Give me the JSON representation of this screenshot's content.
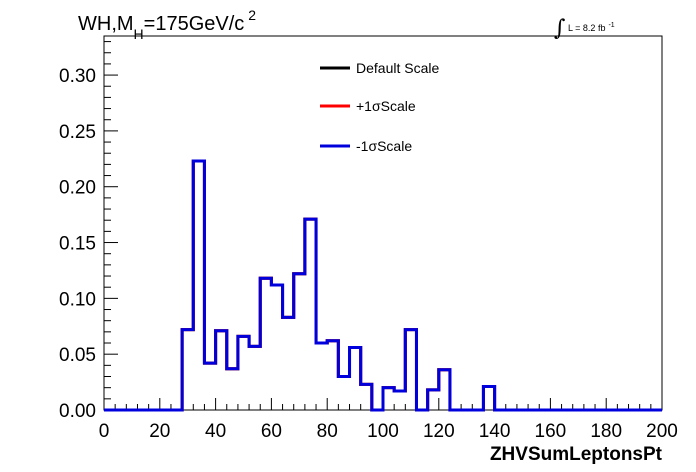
{
  "chart_data": {
    "type": "line",
    "title": {
      "main": "WH,M",
      "sub": "H",
      "rest": "=175GeV/c",
      "sup": "2"
    },
    "lumi": {
      "symbol": "∫",
      "text": "L = 8.2 fb",
      "sup": "-1"
    },
    "xlabel": "ZHVSumLeptonsPt",
    "ylabel": "",
    "xlim": [
      0,
      200
    ],
    "ylim": [
      0,
      0.335
    ],
    "x_ticks": [
      "0",
      "20",
      "40",
      "60",
      "80",
      "100",
      "120",
      "140",
      "160",
      "180",
      "200"
    ],
    "y_ticks": [
      "0.00",
      "0.05",
      "0.10",
      "0.15",
      "0.20",
      "0.25",
      "0.30"
    ],
    "bin_width": 4,
    "bin_edges_start": 0,
    "legend_position": "top-center",
    "series": [
      {
        "name": "Default Scale",
        "color": "#000000",
        "values": [
          0,
          0,
          0,
          0,
          0,
          0,
          0,
          0.072,
          0.223,
          0.042,
          0.071,
          0.037,
          0.066,
          0.057,
          0.118,
          0.112,
          0.083,
          0.122,
          0.171,
          0.06,
          0.062,
          0.03,
          0.056,
          0.023,
          0,
          0.02,
          0.017,
          0.072,
          0,
          0.018,
          0.036,
          0,
          0,
          0,
          0.021,
          0,
          0,
          0,
          0,
          0,
          0,
          0,
          0,
          0,
          0,
          0,
          0,
          0,
          0,
          0
        ]
      },
      {
        "name": "+1σScale",
        "color": "#ff0000",
        "values": [
          0,
          0,
          0,
          0,
          0,
          0,
          0,
          0.072,
          0.223,
          0.042,
          0.071,
          0.037,
          0.066,
          0.057,
          0.118,
          0.112,
          0.083,
          0.122,
          0.171,
          0.06,
          0.062,
          0.03,
          0.056,
          0.023,
          0,
          0.02,
          0.017,
          0.072,
          0,
          0.018,
          0.036,
          0,
          0,
          0,
          0.021,
          0,
          0,
          0,
          0,
          0,
          0,
          0,
          0,
          0,
          0,
          0,
          0,
          0,
          0,
          0
        ]
      },
      {
        "name": "-1σScale",
        "color": "#0000dd",
        "values": [
          0,
          0,
          0,
          0,
          0,
          0,
          0,
          0.072,
          0.223,
          0.042,
          0.071,
          0.037,
          0.066,
          0.057,
          0.118,
          0.112,
          0.083,
          0.122,
          0.171,
          0.06,
          0.062,
          0.03,
          0.056,
          0.023,
          0,
          0.02,
          0.017,
          0.072,
          0,
          0.018,
          0.036,
          0,
          0,
          0,
          0.021,
          0,
          0,
          0,
          0,
          0,
          0,
          0,
          0,
          0,
          0,
          0,
          0,
          0,
          0,
          0
        ]
      }
    ]
  }
}
